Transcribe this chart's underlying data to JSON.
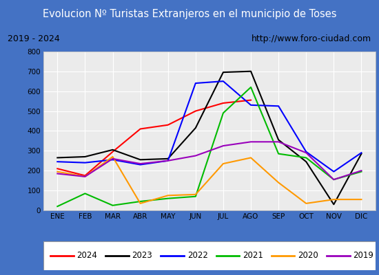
{
  "title": "Evolucion Nº Turistas Extranjeros en el municipio de Toses",
  "subtitle_left": "2019 - 2024",
  "subtitle_right": "http://www.foro-ciudad.com",
  "months": [
    "ENE",
    "FEB",
    "MAR",
    "ABR",
    "MAY",
    "JUN",
    "JUL",
    "AGO",
    "SEP",
    "OCT",
    "NOV",
    "DIC"
  ],
  "series": {
    "2024": [
      210,
      175,
      295,
      410,
      430,
      500,
      540,
      555,
      null,
      null,
      null,
      null
    ],
    "2023": [
      265,
      270,
      305,
      255,
      260,
      415,
      695,
      700,
      355,
      245,
      30,
      285
    ],
    "2022": [
      245,
      240,
      255,
      230,
      250,
      640,
      650,
      530,
      525,
      295,
      195,
      290
    ],
    "2021": [
      20,
      85,
      25,
      45,
      60,
      70,
      490,
      620,
      285,
      265,
      155,
      195
    ],
    "2020": [
      195,
      170,
      270,
      35,
      75,
      80,
      235,
      265,
      140,
      35,
      55,
      55
    ],
    "2019": [
      185,
      170,
      260,
      235,
      250,
      275,
      325,
      345,
      345,
      290,
      155,
      200
    ]
  },
  "colors": {
    "2024": "#ff0000",
    "2023": "#000000",
    "2022": "#0000ff",
    "2021": "#00bb00",
    "2020": "#ff9900",
    "2019": "#9900bb"
  },
  "ylim": [
    0,
    800
  ],
  "yticks": [
    0,
    100,
    200,
    300,
    400,
    500,
    600,
    700,
    800
  ],
  "title_bg_color": "#4472c4",
  "plot_bg_color": "#ebebeb",
  "grid_color": "#ffffff",
  "border_color": "#4472c4",
  "fig_bg_color": "#4472c4"
}
